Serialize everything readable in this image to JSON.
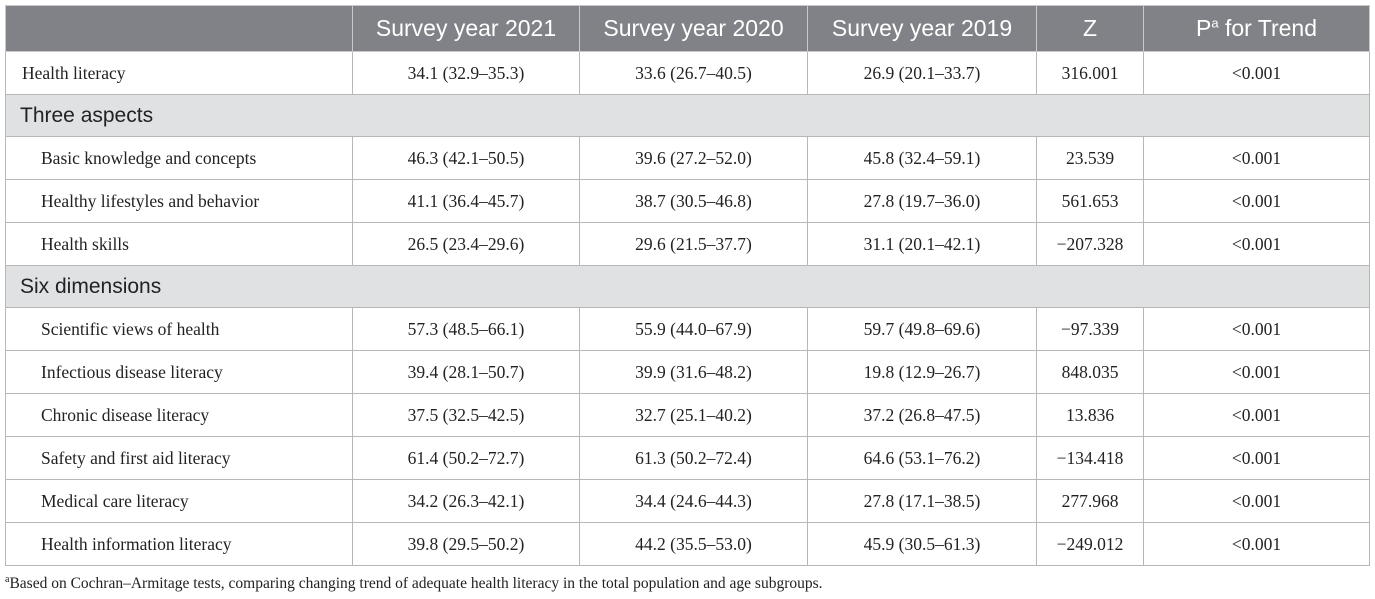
{
  "header": {
    "col0": "",
    "col1": "Survey year 2021",
    "col2": "Survey year 2020",
    "col3": "Survey year 2019",
    "col4": "Z",
    "col5_p": "P",
    "col5_sup": "a",
    "col5_rest": " for Trend"
  },
  "rows": {
    "health_literacy": {
      "label": "Health literacy",
      "y2021": "34.1 (32.9–35.3)",
      "y2020": "33.6 (26.7–40.5)",
      "y2019": "26.9 (20.1–33.7)",
      "z": "316.001",
      "p": "<0.001"
    }
  },
  "sections": {
    "three_aspects": {
      "title": "Three aspects",
      "rows": {
        "r0": {
          "label": "Basic knowledge and concepts",
          "y2021": "46.3 (42.1–50.5)",
          "y2020": "39.6 (27.2–52.0)",
          "y2019": "45.8 (32.4–59.1)",
          "z": "23.539",
          "p": "<0.001"
        },
        "r1": {
          "label": "Healthy lifestyles and behavior",
          "y2021": "41.1 (36.4–45.7)",
          "y2020": "38.7 (30.5–46.8)",
          "y2019": "27.8 (19.7–36.0)",
          "z": "561.653",
          "p": "<0.001"
        },
        "r2": {
          "label": "Health skills",
          "y2021": "26.5 (23.4–29.6)",
          "y2020": "29.6 (21.5–37.7)",
          "y2019": "31.1 (20.1–42.1)",
          "z": "−207.328",
          "p": "<0.001"
        }
      }
    },
    "six_dimensions": {
      "title": "Six dimensions",
      "rows": {
        "r0": {
          "label": "Scientific views of health",
          "y2021": "57.3 (48.5–66.1)",
          "y2020": "55.9 (44.0–67.9)",
          "y2019": "59.7 (49.8–69.6)",
          "z": "−97.339",
          "p": "<0.001"
        },
        "r1": {
          "label": "Infectious disease literacy",
          "y2021": "39.4 (28.1–50.7)",
          "y2020": "39.9 (31.6–48.2)",
          "y2019": "19.8 (12.9–26.7)",
          "z": "848.035",
          "p": "<0.001"
        },
        "r2": {
          "label": "Chronic disease literacy",
          "y2021": "37.5 (32.5–42.5)",
          "y2020": "32.7 (25.1–40.2)",
          "y2019": "37.2 (26.8–47.5)",
          "z": "13.836",
          "p": "<0.001"
        },
        "r3": {
          "label": "Safety and first aid literacy",
          "y2021": "61.4 (50.2–72.7)",
          "y2020": "61.3 (50.2–72.4)",
          "y2019": "64.6 (53.1–76.2)",
          "z": "−134.418",
          "p": "<0.001"
        },
        "r4": {
          "label": "Medical care literacy",
          "y2021": "34.2 (26.3–42.1)",
          "y2020": "34.4 (24.6–44.3)",
          "y2019": "27.8 (17.1–38.5)",
          "z": "277.968",
          "p": "<0.001"
        },
        "r5": {
          "label": "Health information literacy",
          "y2021": "39.8 (29.5–50.2)",
          "y2020": "44.2 (35.5–53.0)",
          "y2019": "45.9 (30.5–61.3)",
          "z": "−249.012",
          "p": "<0.001"
        }
      }
    }
  },
  "footnote": {
    "marker": "a",
    "text": "Based on Cochran–Armitage tests, comparing changing trend of adequate health literacy in the total population and age subgroups."
  },
  "colors": {
    "header_bg": "#808287",
    "section_bg": "#e0e1e3",
    "border": "#b7b7b7"
  }
}
